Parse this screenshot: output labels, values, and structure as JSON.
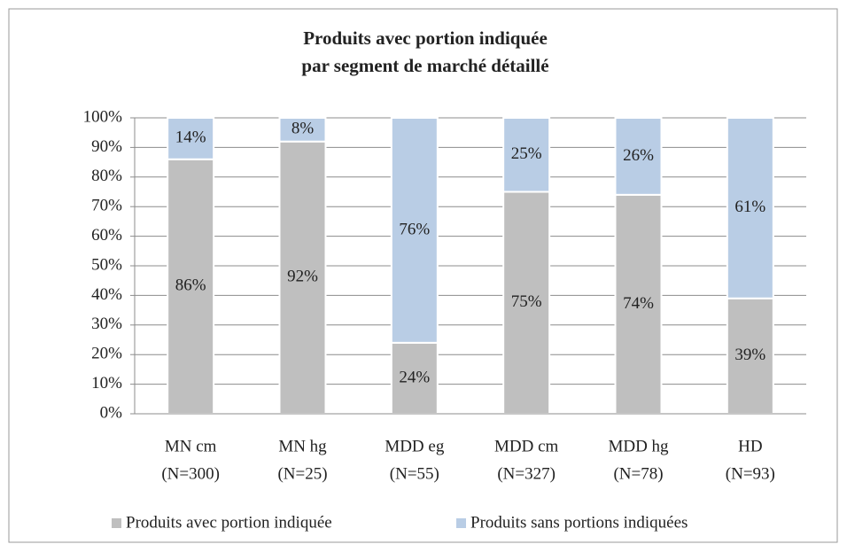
{
  "chart_data": {
    "type": "stacked_bar",
    "title": [
      "Produits avec portion indiquée",
      "par segment de marché détaillé"
    ],
    "categories": [
      [
        "MN cm",
        "(N=300)"
      ],
      [
        "MN hg",
        "(N=25)"
      ],
      [
        "MDD eg",
        "(N=55)"
      ],
      [
        "MDD cm",
        "(N=327)"
      ],
      [
        "MDD hg",
        "(N=78)"
      ],
      [
        "HD",
        "(N=93)"
      ]
    ],
    "series": [
      {
        "name": "Produits avec portion indiquée",
        "color": "#bfbfbf",
        "values": [
          86,
          92,
          24,
          75,
          74,
          39
        ],
        "value_labels": [
          "86%",
          "92%",
          "24%",
          "75%",
          "74%",
          "39%"
        ]
      },
      {
        "name": "Produits sans portions indiquées",
        "color": "#b9cde5",
        "values": [
          14,
          8,
          76,
          25,
          26,
          61
        ],
        "value_labels": [
          "14%",
          "8%",
          "76%",
          "25%",
          "26%",
          "61%"
        ]
      }
    ],
    "ylim": [
      0,
      100
    ],
    "yticks": [
      {
        "value": 0,
        "label": "0%"
      },
      {
        "value": 10,
        "label": "10%"
      },
      {
        "value": 20,
        "label": "20%"
      },
      {
        "value": 30,
        "label": "30%"
      },
      {
        "value": 40,
        "label": "40%"
      },
      {
        "value": 50,
        "label": "50%"
      },
      {
        "value": 60,
        "label": "60%"
      },
      {
        "value": 70,
        "label": "70%"
      },
      {
        "value": 80,
        "label": "80%"
      },
      {
        "value": 90,
        "label": "90%"
      },
      {
        "value": 100,
        "label": "100%"
      }
    ],
    "grid": true,
    "legend": "bottom"
  }
}
